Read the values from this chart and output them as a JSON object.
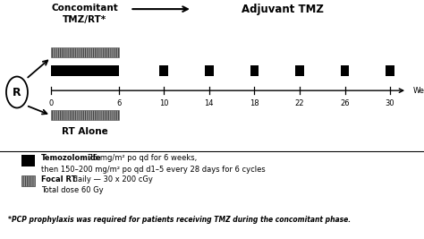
{
  "title_concomitant_line1": "Concomitant",
  "title_concomitant_line2": "TMZ/RT*",
  "title_adjuvant": "Adjuvant TMZ",
  "label_weeks": "Weeks",
  "label_rt_alone": "RT Alone",
  "randomization_label": "R",
  "axis_ticks": [
    0,
    6,
    10,
    14,
    18,
    22,
    26,
    30
  ],
  "tmz_bar_concomitant": [
    0,
    6
  ],
  "tmz_bars_adjuvant": [
    10,
    14,
    18,
    22,
    26,
    30
  ],
  "legend_tmz_bold": "Temozolomide",
  "legend_tmz_normal1": " 75 mg/m² po qd for 6 weeks,",
  "legend_tmz_normal2": "then 150–200 mg/m² po qd d1–5 every 28 days for 6 cycles",
  "legend_rt_bold": "Focal RT",
  "legend_rt_normal1": " daily — 30 x 200 cGy",
  "legend_rt_normal2": "Total dose 60 Gy",
  "footnote": "*PCP prophylaxis was required for patients receiving TMZ during the concomitant phase.",
  "bg_color": "#ffffff",
  "black": "#000000"
}
